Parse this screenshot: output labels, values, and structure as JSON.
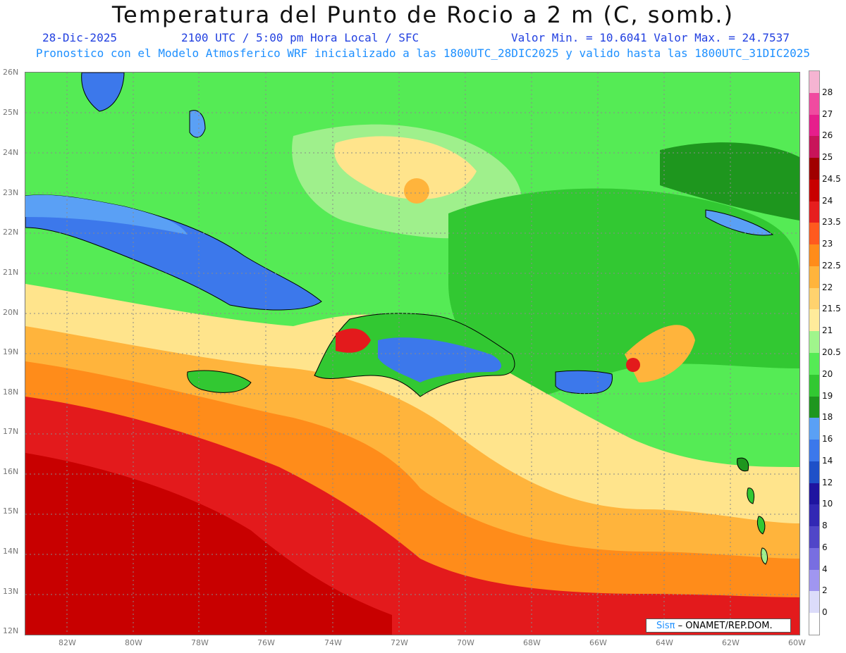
{
  "header": {
    "title": "Temperatura del Punto de Rocio a 2 m (C, somb.)",
    "date": "28-Dic-2025",
    "time_info": "2100 UTC / 5:00 pm Hora Local / SFC",
    "min_max": "Valor Min. = 10.6041  Valor Max. = 24.7537",
    "forecast_info": "Pronostico con el Modelo Atmosferico WRF inicializado a las 1800UTC_28DIC2025 y valido hasta las  1800UTC_31DIC2025"
  },
  "map_data": {
    "lon_range": [
      -83.2,
      -60
    ],
    "lat_range": [
      12,
      26
    ],
    "lon_labels": [
      "82W",
      "80W",
      "78W",
      "76W",
      "74W",
      "72W",
      "70W",
      "68W",
      "66W",
      "64W",
      "62W",
      "60W"
    ],
    "lat_labels": [
      "26N",
      "25N",
      "24N",
      "23N",
      "22N",
      "21N",
      "20N",
      "19N",
      "18N",
      "17N",
      "16N",
      "15N",
      "14N",
      "13N",
      "12N"
    ],
    "colors": {
      "dark_red": "#c80000",
      "red": "#e31a1c",
      "orange_red": "#ff5a1e",
      "orange": "#ff8c1a",
      "light_orange": "#ffb43c",
      "pale_yellow": "#ffe48c",
      "pale_green": "#9ff08c",
      "green": "#55eb55",
      "mid_green": "#32c832",
      "dark_green": "#1e961e",
      "light_blue": "#5aa0f5",
      "blue": "#3c78eb"
    }
  },
  "colorbar": {
    "labels": [
      "28",
      "27",
      "26",
      "25",
      "24.5",
      "24",
      "23.5",
      "23",
      "22.5",
      "22",
      "21.5",
      "21",
      "20.5",
      "20",
      "19",
      "18",
      "16",
      "14",
      "12",
      "10",
      "8",
      "6",
      "4",
      "2",
      "0"
    ],
    "colors": [
      "#f5b4d2",
      "#f04ba0",
      "#e61e8c",
      "#c8145a",
      "#a00000",
      "#c80000",
      "#e61e1e",
      "#ff5a1e",
      "#ff8c1a",
      "#ffb43c",
      "#ffd26e",
      "#ffeb9b",
      "#a0f58c",
      "#55eb55",
      "#32c832",
      "#1e961e",
      "#5aa0f5",
      "#3c78eb",
      "#1e50c8",
      "#1e14a0",
      "#3228b4",
      "#5046c8",
      "#786ee1",
      "#a096f0",
      "#dcdcfa"
    ]
  },
  "credit": {
    "brand": "Sisπ",
    "text": " – ONAMET/REP.DOM."
  }
}
